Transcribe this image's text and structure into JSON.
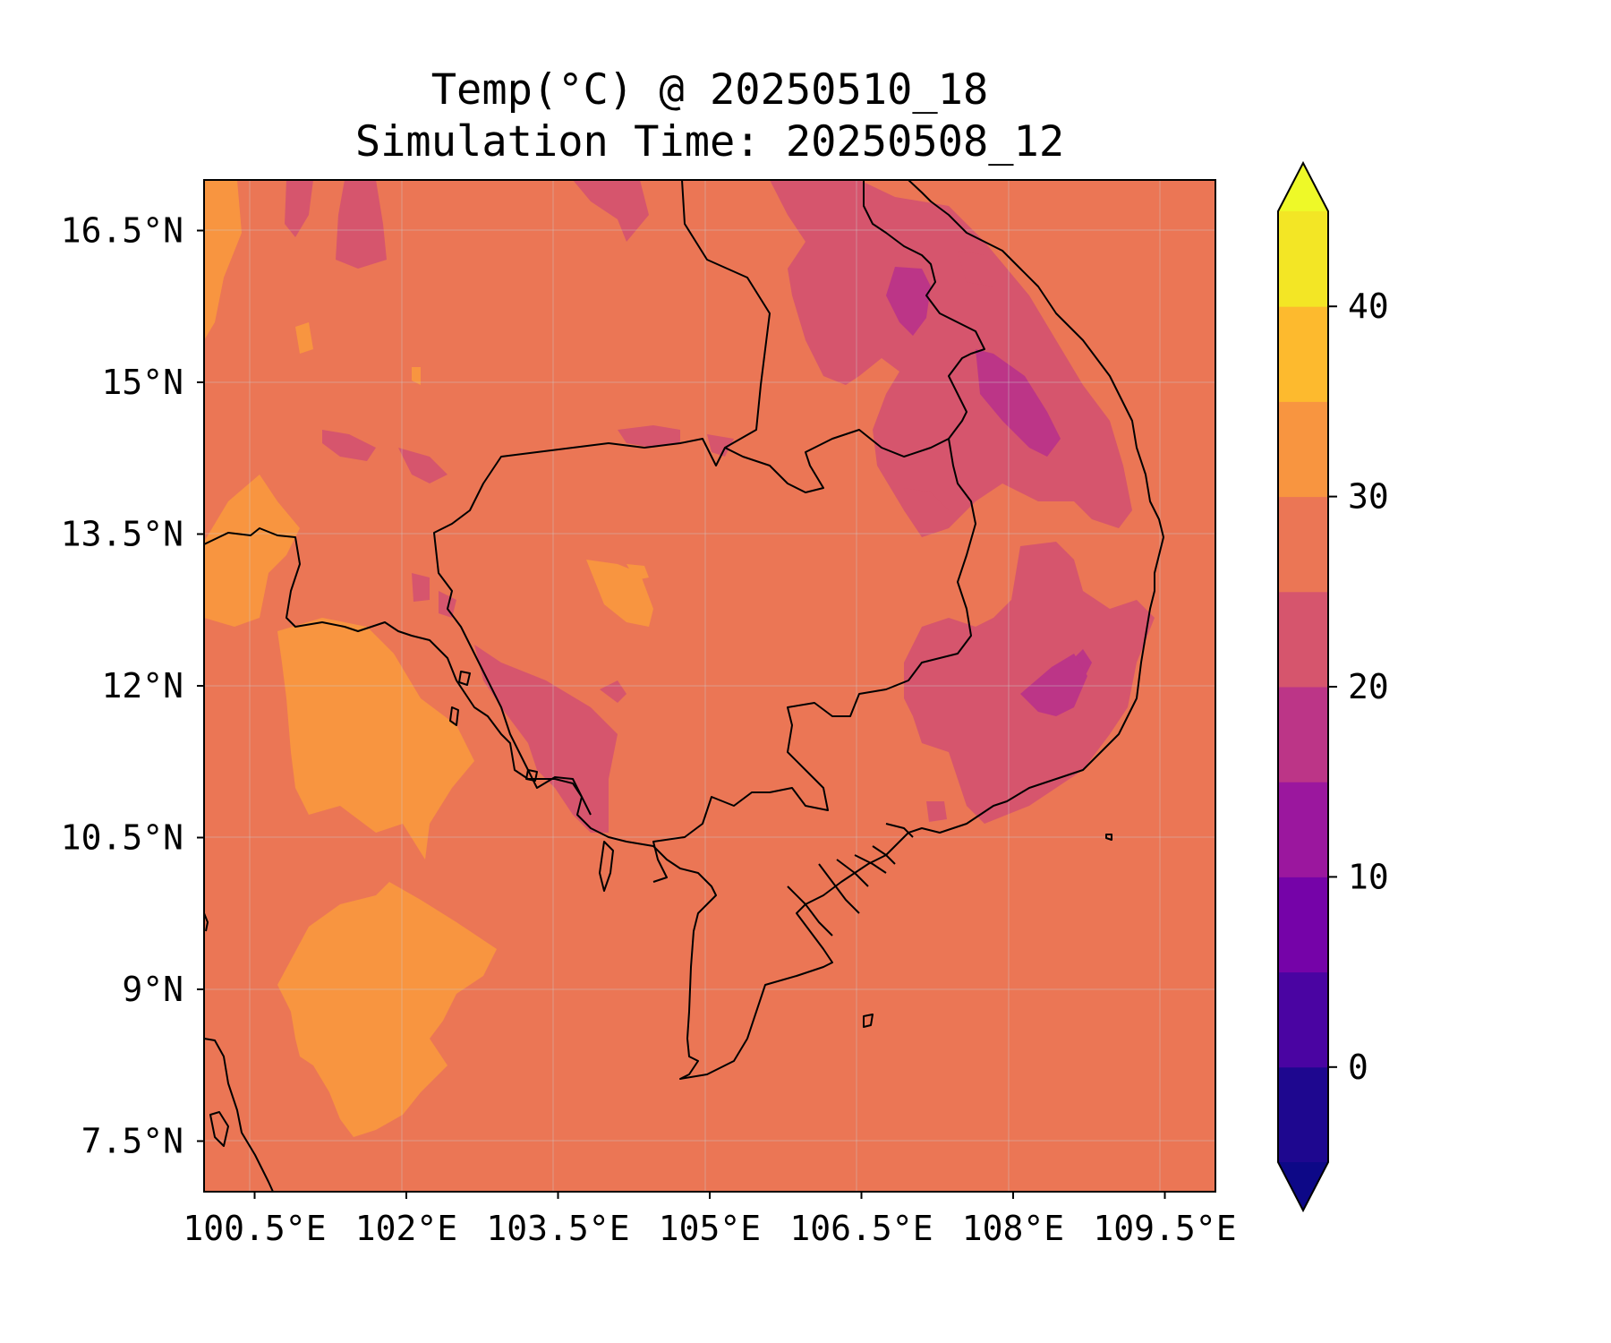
{
  "title": {
    "line1": "Temp(°C) @ 20250510_18",
    "line2": "Simulation Time: 20250508_12"
  },
  "map": {
    "type": "filled-contour-map",
    "region": "Cambodia and surroundings",
    "variable": "Temperature (°C)",
    "lon_range": [
      100.0,
      110.0
    ],
    "lat_range": [
      7.0,
      17.0
    ],
    "x_ticks": [
      {
        "value": 100.5,
        "label": "100.5°E"
      },
      {
        "value": 102.0,
        "label": "102°E"
      },
      {
        "value": 103.5,
        "label": "103.5°E"
      },
      {
        "value": 105.0,
        "label": "105°E"
      },
      {
        "value": 106.5,
        "label": "106.5°E"
      },
      {
        "value": 108.0,
        "label": "108°E"
      },
      {
        "value": 109.5,
        "label": "109.5°E"
      }
    ],
    "y_ticks": [
      {
        "value": 16.5,
        "label": "16.5°N"
      },
      {
        "value": 15.0,
        "label": "15°N"
      },
      {
        "value": 13.5,
        "label": "13.5°N"
      },
      {
        "value": 12.0,
        "label": "12°N"
      },
      {
        "value": 10.5,
        "label": "10.5°N"
      },
      {
        "value": 9.0,
        "label": "9°N"
      },
      {
        "value": 7.5,
        "label": "7.5°N"
      }
    ],
    "grid": true,
    "background_level": "25–30 °C"
  },
  "colorbar": {
    "levels": [
      -5,
      0,
      5,
      10,
      15,
      20,
      25,
      30,
      35,
      40,
      45
    ],
    "colors": [
      "#1e078f",
      "#4a04a2",
      "#7503a8",
      "#9b179e",
      "#bc3587",
      "#d6556d",
      "#eb7655",
      "#f89540",
      "#fdba2e",
      "#f3e625"
    ],
    "extend_low_color": "#0d0887",
    "extend_high_color": "#eef928",
    "tick_labels": [
      {
        "value": 0,
        "label": "0"
      },
      {
        "value": 10,
        "label": "10"
      },
      {
        "value": 20,
        "label": "20"
      },
      {
        "value": 30,
        "label": "30"
      },
      {
        "value": 40,
        "label": "40"
      }
    ],
    "extend": "both"
  }
}
